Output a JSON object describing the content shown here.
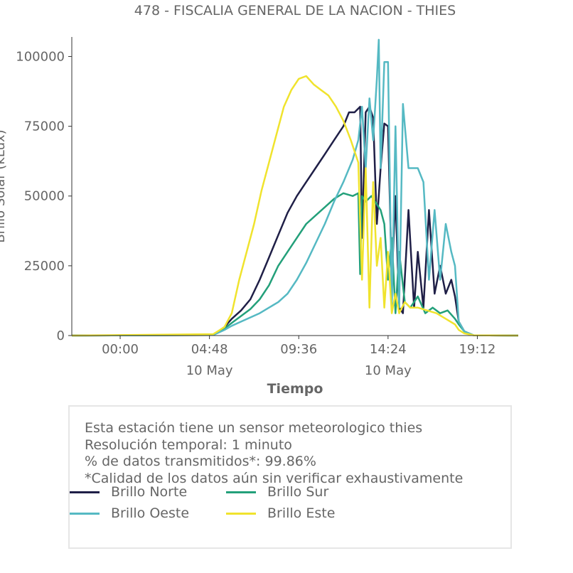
{
  "chart_data": {
    "type": "line",
    "title": "478 - FISCALIA GENERAL DE LA NACION - THIES",
    "xlabel": "Tiempo",
    "ylabel": "Brillo Solar (kLux)",
    "ylim": [
      0,
      107000
    ],
    "y_ticks": [
      0,
      25000,
      50000,
      75000,
      100000
    ],
    "y_tick_labels": [
      "0",
      "25000",
      "50000",
      "75000",
      "100000"
    ],
    "xlim": [
      -2.6,
      21.4
    ],
    "x_ticks": [
      0,
      4.8,
      9.6,
      14.4,
      19.2
    ],
    "x_tick_labels": [
      "00:00",
      "04:48",
      "09:36",
      "14:24",
      "19:12"
    ],
    "x_date_labels": [
      "",
      "10 May",
      "",
      "10 May",
      ""
    ],
    "grid": false,
    "legend_position": "bottom",
    "series": [
      {
        "name": "Brillo Norte",
        "color": "#1f1f47",
        "x": [
          -2.6,
          5.0,
          5.6,
          6.0,
          6.5,
          7.0,
          7.5,
          8.0,
          8.5,
          9.0,
          9.5,
          10.0,
          10.5,
          11.0,
          11.5,
          12.0,
          12.3,
          12.6,
          12.9,
          13.0,
          13.2,
          13.4,
          13.6,
          13.8,
          14.0,
          14.2,
          14.4,
          14.6,
          14.8,
          15.0,
          15.2,
          15.5,
          15.8,
          16.0,
          16.3,
          16.6,
          16.9,
          17.2,
          17.5,
          17.8,
          18.0,
          18.2,
          18.5,
          19.0,
          21.4
        ],
        "y": [
          0,
          200,
          3000,
          6000,
          9000,
          13000,
          20000,
          28000,
          36000,
          44000,
          50000,
          55000,
          60000,
          65000,
          70000,
          75000,
          80000,
          80000,
          82000,
          35000,
          80000,
          82000,
          78000,
          40000,
          60000,
          76000,
          75000,
          20000,
          50000,
          10000,
          8000,
          45000,
          10000,
          30000,
          10000,
          45000,
          15000,
          25000,
          15000,
          20000,
          14000,
          5000,
          1500,
          100,
          0
        ]
      },
      {
        "name": "Brillo Sur",
        "color": "#23a07a",
        "x": [
          -2.6,
          5.0,
          5.6,
          6.0,
          6.5,
          7.0,
          7.5,
          8.0,
          8.5,
          9.0,
          9.5,
          10.0,
          10.5,
          11.0,
          11.5,
          12.0,
          12.5,
          12.8,
          12.9,
          13.0,
          13.2,
          13.5,
          13.8,
          14.0,
          14.2,
          14.4,
          14.6,
          14.8,
          15.0,
          15.3,
          15.6,
          16.0,
          16.4,
          16.8,
          17.2,
          17.6,
          18.0,
          18.2,
          18.5,
          19.0,
          21.4
        ],
        "y": [
          0,
          200,
          2500,
          4500,
          7000,
          9500,
          13000,
          18000,
          25000,
          30000,
          35000,
          40000,
          43000,
          46000,
          49000,
          51000,
          50000,
          51000,
          22000,
          50000,
          48000,
          50000,
          47000,
          45000,
          40000,
          20000,
          35000,
          8000,
          30000,
          12000,
          10000,
          14000,
          8000,
          10000,
          8000,
          9000,
          6000,
          4000,
          1500,
          100,
          0
        ]
      },
      {
        "name": "Brillo Oeste",
        "color": "#55b9c3",
        "x": [
          -2.6,
          5.0,
          5.6,
          6.0,
          6.5,
          7.0,
          7.5,
          8.0,
          8.5,
          9.0,
          9.5,
          10.0,
          10.5,
          11.0,
          11.5,
          12.0,
          12.5,
          12.8,
          13.0,
          13.2,
          13.4,
          13.6,
          13.8,
          13.9,
          14.0,
          14.2,
          14.4,
          14.6,
          14.8,
          15.0,
          15.2,
          15.5,
          15.8,
          16.0,
          16.3,
          16.6,
          16.9,
          17.2,
          17.5,
          17.8,
          18.0,
          18.2,
          18.5,
          19.0,
          21.4
        ],
        "y": [
          0,
          200,
          2000,
          3500,
          5000,
          6500,
          8000,
          10000,
          12000,
          15000,
          20000,
          26000,
          33000,
          40000,
          48000,
          55000,
          63000,
          70000,
          82000,
          60000,
          85000,
          70000,
          92000,
          106000,
          60000,
          98000,
          98000,
          10000,
          75000,
          10000,
          83000,
          60000,
          60000,
          60000,
          55000,
          20000,
          45000,
          20000,
          40000,
          30000,
          25000,
          5000,
          1500,
          100,
          0
        ]
      },
      {
        "name": "Brillo Este",
        "color": "#f0e32d",
        "x": [
          -2.6,
          5.0,
          5.6,
          6.0,
          6.4,
          6.8,
          7.2,
          7.6,
          8.0,
          8.4,
          8.8,
          9.2,
          9.6,
          10.0,
          10.4,
          10.8,
          11.2,
          11.6,
          12.0,
          12.4,
          12.8,
          13.0,
          13.2,
          13.4,
          13.6,
          13.8,
          14.0,
          14.2,
          14.4,
          14.6,
          14.8,
          15.0,
          15.3,
          15.6,
          16.0,
          16.5,
          17.0,
          17.5,
          18.0,
          18.2,
          18.5,
          19.0,
          21.4
        ],
        "y": [
          0,
          500,
          3000,
          8000,
          20000,
          30000,
          40000,
          52000,
          62000,
          72000,
          82000,
          88000,
          92000,
          93000,
          90000,
          88000,
          86000,
          82000,
          77000,
          70000,
          62000,
          20000,
          60000,
          10000,
          55000,
          25000,
          35000,
          10000,
          30000,
          8000,
          15000,
          8000,
          12000,
          10000,
          10000,
          9000,
          8000,
          6000,
          4000,
          2000,
          800,
          100,
          0
        ]
      }
    ]
  },
  "info": {
    "line1": "Esta estación tiene un sensor meteorologico thies",
    "line2": "Resolución temporal: 1 minuto",
    "line3": "% de datos transmitidos*: 99.86%",
    "line4": "*Calidad de los datos aún sin verificar exhaustivamente"
  }
}
